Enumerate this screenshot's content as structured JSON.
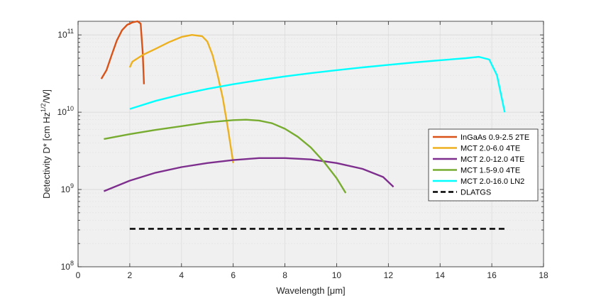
{
  "chart_data": {
    "type": "line",
    "xlabel_prefix": "Wavelength [",
    "xlabel_mu": "μ",
    "xlabel_suffix": "m]",
    "ylabel_main": "Detectivity D* [cm Hz",
    "ylabel_sup": "1/2",
    "ylabel_end": "/W]",
    "xlim": [
      0,
      18
    ],
    "ylim": [
      100000000,
      150000000000
    ],
    "yscale": "log",
    "grid": true,
    "legend_position": "right",
    "x_ticks": [
      0,
      2,
      4,
      6,
      8,
      10,
      12,
      14,
      16,
      18
    ],
    "x_tick_labels": [
      "0",
      "2",
      "4",
      "6",
      "8",
      "10",
      "12",
      "14",
      "16",
      "18"
    ],
    "y_ticks": [
      {
        "value": 100000000,
        "base": "10",
        "exp": "8"
      },
      {
        "value": 1000000000,
        "base": "10",
        "exp": "9"
      },
      {
        "value": 10000000000,
        "base": "10",
        "exp": "10"
      },
      {
        "value": 100000000000,
        "base": "10",
        "exp": "11"
      }
    ],
    "series": [
      {
        "name": "InGaAs 0.9-2.5 2TE",
        "color": "#D95319",
        "dashed": false,
        "x": [
          0.9,
          1.1,
          1.3,
          1.5,
          1.7,
          1.9,
          2.1,
          2.3,
          2.42,
          2.5,
          2.55
        ],
        "y": [
          27000000000,
          35000000000,
          55000000000,
          85000000000,
          115000000000,
          135000000000,
          145000000000,
          150000000000,
          140000000000,
          60000000000,
          23000000000
        ]
      },
      {
        "name": "MCT 2.0-6.0 4TE",
        "color": "#EDB120",
        "dashed": false,
        "x": [
          2.0,
          2.1,
          2.5,
          3.0,
          3.5,
          4.0,
          4.4,
          4.8,
          5.0,
          5.2,
          5.4,
          5.6,
          5.8,
          6.0
        ],
        "y": [
          38000000000,
          45000000000,
          55000000000,
          66000000000,
          80000000000,
          94000000000,
          100000000000,
          96000000000,
          82000000000,
          55000000000,
          30000000000,
          15000000000,
          6000000000,
          2200000000
        ]
      },
      {
        "name": "MCT 2.0-12.0 4TE",
        "color": "#7E2F8E",
        "dashed": false,
        "x": [
          1.0,
          2.0,
          3.0,
          4.0,
          5.0,
          6.0,
          7.0,
          8.0,
          9.0,
          10.0,
          11.0,
          11.8,
          12.2
        ],
        "y": [
          950000000,
          1300000000,
          1650000000,
          1950000000,
          2200000000,
          2400000000,
          2550000000,
          2550000000,
          2450000000,
          2200000000,
          1850000000,
          1450000000,
          1080000000
        ]
      },
      {
        "name": "MCT 1.5-9.0 4TE",
        "color": "#77AC30",
        "dashed": false,
        "x": [
          1.0,
          2.0,
          3.0,
          4.0,
          5.0,
          6.0,
          6.5,
          7.0,
          7.5,
          8.0,
          8.5,
          9.0,
          9.5,
          10.0,
          10.35
        ],
        "y": [
          4500000000,
          5200000000,
          5900000000,
          6600000000,
          7400000000,
          7900000000,
          8000000000,
          7800000000,
          7200000000,
          6100000000,
          4800000000,
          3500000000,
          2300000000,
          1400000000,
          900000000
        ]
      },
      {
        "name": "MCT 2.0-16.0 LN2",
        "color": "#00FFFF",
        "dashed": false,
        "x": [
          2.0,
          3.0,
          4.0,
          5.0,
          6.0,
          7.0,
          8.0,
          9.0,
          10.0,
          11.0,
          12.0,
          13.0,
          14.0,
          15.0,
          15.5,
          15.9,
          16.2,
          16.5
        ],
        "y": [
          11000000000,
          14000000000,
          17000000000,
          20000000000,
          23000000000,
          26000000000,
          29000000000,
          32000000000,
          35000000000,
          38000000000,
          41000000000,
          44000000000,
          47000000000,
          50000000000,
          52000000000,
          48000000000,
          30000000000,
          10000000000
        ]
      },
      {
        "name": "DLATGS",
        "color": "#000000",
        "dashed": true,
        "x": [
          2.0,
          16.5
        ],
        "y": [
          310000000,
          310000000
        ]
      }
    ],
    "legend": [
      {
        "label": "InGaAs 0.9-2.5 2TE"
      },
      {
        "label": "MCT 2.0-6.0 4TE"
      },
      {
        "label": "MCT 2.0-12.0 4TE"
      },
      {
        "label": "MCT 1.5-9.0 4TE"
      },
      {
        "label": " MCT 2.0-16.0 LN2"
      },
      {
        "label": "DLATGS"
      }
    ]
  }
}
